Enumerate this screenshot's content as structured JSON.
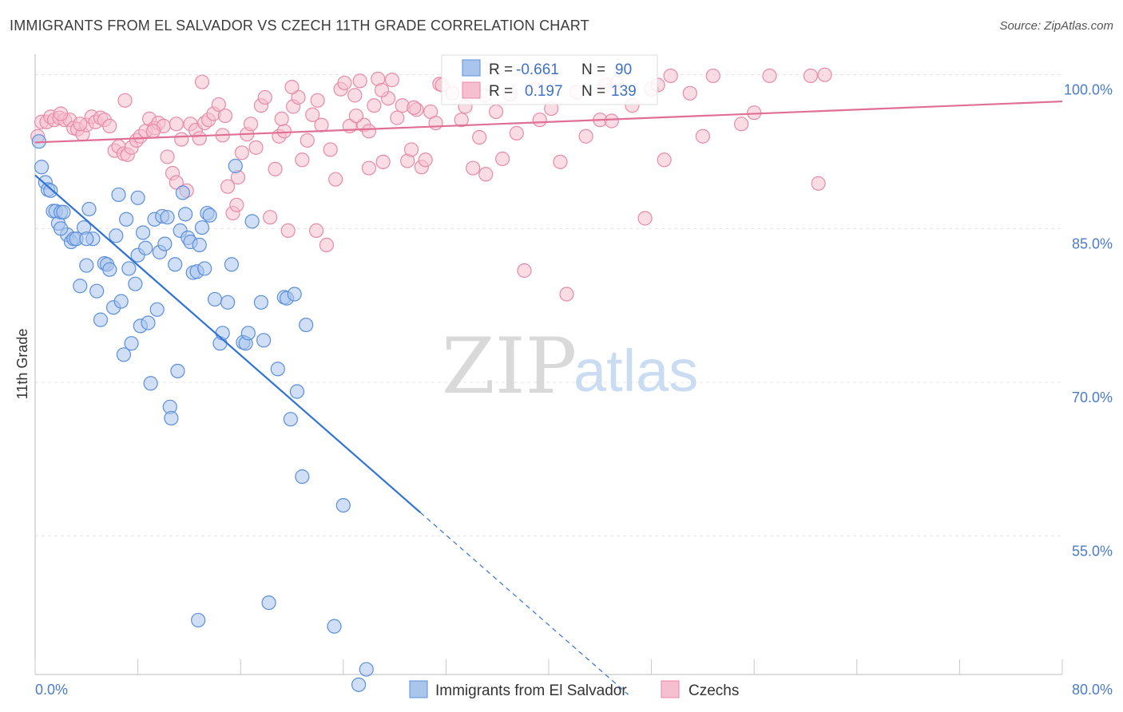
{
  "header": {
    "title": "IMMIGRANTS FROM EL SALVADOR VS CZECH 11TH GRADE CORRELATION CHART",
    "source": "Source: ZipAtlas.com"
  },
  "watermark": {
    "zip": "ZIP",
    "atlas": "atlas"
  },
  "colors": {
    "blue_fill": "#a9c5ec",
    "blue_stroke": "#5b8fdb",
    "blue_line": "#2f72d6",
    "pink_fill": "#f6bfd0",
    "pink_stroke": "#e88aa8",
    "pink_line": "#e06f95",
    "tick_text": "#4a7cc9",
    "grid": "#e4e4e4"
  },
  "legend_box": {
    "rows": [
      {
        "r_label": "R =",
        "r_value": "-0.661",
        "n_label": "N =",
        "n_value": "90"
      },
      {
        "r_label": "R =",
        "r_value": "0.197",
        "n_label": "N =",
        "n_value": "139"
      }
    ]
  },
  "chart_data": {
    "type": "scatter",
    "title": "IMMIGRANTS FROM EL SALVADOR VS CZECH 11TH GRADE CORRELATION CHART",
    "xlabel": "",
    "ylabel": "11th Grade",
    "xlim": [
      0,
      80
    ],
    "ylim": [
      41.5,
      102
    ],
    "x_ticks": [
      "0.0%",
      "80.0%"
    ],
    "y_ticks": [
      {
        "value": 100,
        "label": "100.0%"
      },
      {
        "value": 85,
        "label": "85.0%"
      },
      {
        "value": 70,
        "label": "70.0%"
      },
      {
        "value": 55,
        "label": "55.0%"
      }
    ],
    "grid": true,
    "legend_position": "bottom",
    "series": [
      {
        "name": "Immigrants from El Salvador",
        "r": -0.661,
        "n": 90,
        "trend": {
          "x0": 0,
          "y0": 90.2,
          "x1": 30,
          "y1": 57.3,
          "dash_to_x": 46.2
        },
        "points": [
          [
            0.3,
            93.5
          ],
          [
            0.5,
            91.0
          ],
          [
            0.8,
            89.5
          ],
          [
            1.0,
            88.8
          ],
          [
            1.2,
            88.7
          ],
          [
            1.4,
            86.7
          ],
          [
            1.6,
            86.7
          ],
          [
            1.8,
            85.5
          ],
          [
            2.0,
            86.6
          ],
          [
            2.2,
            86.6
          ],
          [
            2.5,
            84.4
          ],
          [
            2.8,
            83.7
          ],
          [
            3.0,
            84.0
          ],
          [
            3.2,
            84.0
          ],
          [
            3.5,
            79.4
          ],
          [
            3.8,
            85.1
          ],
          [
            4.0,
            81.4
          ],
          [
            4.2,
            86.9
          ],
          [
            4.5,
            84.0
          ],
          [
            4.8,
            78.9
          ],
          [
            5.1,
            76.1
          ],
          [
            5.4,
            81.6
          ],
          [
            5.6,
            81.5
          ],
          [
            5.8,
            81.0
          ],
          [
            6.1,
            77.3
          ],
          [
            6.3,
            84.3
          ],
          [
            6.5,
            88.3
          ],
          [
            6.7,
            77.9
          ],
          [
            6.9,
            72.7
          ],
          [
            7.1,
            85.9
          ],
          [
            7.3,
            81.1
          ],
          [
            7.5,
            73.8
          ],
          [
            7.8,
            79.6
          ],
          [
            8.0,
            82.4
          ],
          [
            8.2,
            75.5
          ],
          [
            8.4,
            84.6
          ],
          [
            8.6,
            83.1
          ],
          [
            8.8,
            75.8
          ],
          [
            9.0,
            69.9
          ],
          [
            9.3,
            85.9
          ],
          [
            9.5,
            77.1
          ],
          [
            9.7,
            82.7
          ],
          [
            9.9,
            86.2
          ],
          [
            10.1,
            83.5
          ],
          [
            10.3,
            86.1
          ],
          [
            10.5,
            67.6
          ],
          [
            10.6,
            66.5
          ],
          [
            10.9,
            81.5
          ],
          [
            11.1,
            71.1
          ],
          [
            11.3,
            84.8
          ],
          [
            11.5,
            88.5
          ],
          [
            11.7,
            86.4
          ],
          [
            11.9,
            84.1
          ],
          [
            12.1,
            83.7
          ],
          [
            12.3,
            80.7
          ],
          [
            12.6,
            80.8
          ],
          [
            12.8,
            83.4
          ],
          [
            13.0,
            85.1
          ],
          [
            13.2,
            81.1
          ],
          [
            13.4,
            86.5
          ],
          [
            13.6,
            86.3
          ],
          [
            14.0,
            78.1
          ],
          [
            14.4,
            73.8
          ],
          [
            14.6,
            74.8
          ],
          [
            15.0,
            77.8
          ],
          [
            15.3,
            81.5
          ],
          [
            15.6,
            91.1
          ],
          [
            16.2,
            73.9
          ],
          [
            16.4,
            73.8
          ],
          [
            16.6,
            74.8
          ],
          [
            16.9,
            85.7
          ],
          [
            17.6,
            77.8
          ],
          [
            17.8,
            74.1
          ],
          [
            18.2,
            48.5
          ],
          [
            18.9,
            71.3
          ],
          [
            19.4,
            78.3
          ],
          [
            19.6,
            78.2
          ],
          [
            19.9,
            66.4
          ],
          [
            20.2,
            78.6
          ],
          [
            20.4,
            69.1
          ],
          [
            20.8,
            60.8
          ],
          [
            21.1,
            75.6
          ],
          [
            23.3,
            46.2
          ],
          [
            24.0,
            58.0
          ],
          [
            25.2,
            40.5
          ],
          [
            25.8,
            42.0
          ],
          [
            12.7,
            46.8
          ],
          [
            8.0,
            88.0
          ],
          [
            4.0,
            84.0
          ],
          [
            2.0,
            85.0
          ]
        ]
      },
      {
        "name": "Czechs",
        "r": 0.197,
        "n": 139,
        "trend": {
          "x0": 0,
          "y0": 93.4,
          "x1": 80,
          "y1": 97.4
        },
        "points": [
          [
            0.2,
            94.0
          ],
          [
            0.5,
            95.4
          ],
          [
            0.9,
            95.4
          ],
          [
            1.2,
            95.9
          ],
          [
            1.5,
            95.6
          ],
          [
            1.9,
            95.8
          ],
          [
            2.3,
            95.6
          ],
          [
            2.7,
            95.6
          ],
          [
            3.0,
            94.8
          ],
          [
            3.3,
            94.7
          ],
          [
            3.7,
            94.2
          ],
          [
            4.0,
            95.1
          ],
          [
            4.4,
            95.9
          ],
          [
            4.7,
            95.4
          ],
          [
            5.1,
            95.8
          ],
          [
            5.4,
            95.6
          ],
          [
            5.8,
            95.0
          ],
          [
            6.2,
            92.6
          ],
          [
            6.5,
            93.0
          ],
          [
            6.9,
            92.3
          ],
          [
            7.2,
            92.2
          ],
          [
            7.5,
            92.9
          ],
          [
            7.9,
            93.6
          ],
          [
            8.2,
            94.0
          ],
          [
            8.6,
            94.5
          ],
          [
            8.9,
            95.7
          ],
          [
            9.3,
            94.8
          ],
          [
            9.6,
            95.3
          ],
          [
            10.0,
            95.0
          ],
          [
            10.3,
            92.0
          ],
          [
            10.7,
            90.4
          ],
          [
            11.0,
            89.5
          ],
          [
            11.4,
            93.7
          ],
          [
            11.8,
            88.7
          ],
          [
            12.1,
            95.2
          ],
          [
            12.5,
            94.6
          ],
          [
            12.8,
            93.8
          ],
          [
            13.2,
            95.3
          ],
          [
            13.5,
            95.6
          ],
          [
            13.9,
            96.2
          ],
          [
            14.3,
            97.1
          ],
          [
            14.6,
            94.1
          ],
          [
            15.0,
            89.1
          ],
          [
            15.4,
            86.5
          ],
          [
            15.7,
            87.3
          ],
          [
            16.1,
            92.4
          ],
          [
            16.5,
            94.2
          ],
          [
            16.8,
            95.2
          ],
          [
            17.2,
            92.9
          ],
          [
            17.6,
            97.0
          ],
          [
            17.9,
            97.8
          ],
          [
            18.3,
            86.1
          ],
          [
            18.7,
            90.8
          ],
          [
            19.0,
            94.0
          ],
          [
            19.4,
            94.5
          ],
          [
            19.7,
            84.8
          ],
          [
            20.1,
            96.9
          ],
          [
            20.5,
            97.8
          ],
          [
            20.8,
            91.7
          ],
          [
            21.2,
            93.6
          ],
          [
            21.6,
            96.1
          ],
          [
            21.9,
            84.8
          ],
          [
            22.3,
            95.1
          ],
          [
            22.7,
            83.4
          ],
          [
            23.0,
            92.7
          ],
          [
            23.4,
            89.8
          ],
          [
            23.8,
            98.6
          ],
          [
            24.1,
            99.2
          ],
          [
            24.5,
            95.0
          ],
          [
            24.9,
            98.0
          ],
          [
            25.3,
            99.4
          ],
          [
            25.6,
            95.1
          ],
          [
            26.0,
            90.9
          ],
          [
            26.4,
            97.0
          ],
          [
            26.7,
            99.6
          ],
          [
            27.1,
            91.5
          ],
          [
            27.5,
            97.7
          ],
          [
            27.8,
            99.5
          ],
          [
            28.2,
            95.8
          ],
          [
            28.6,
            97.0
          ],
          [
            29.0,
            91.6
          ],
          [
            29.3,
            92.7
          ],
          [
            29.7,
            96.6
          ],
          [
            30.1,
            91.0
          ],
          [
            30.4,
            91.7
          ],
          [
            30.8,
            96.4
          ],
          [
            31.2,
            95.3
          ],
          [
            31.5,
            99.1
          ],
          [
            32.5,
            98.2
          ],
          [
            33.2,
            95.6
          ],
          [
            33.5,
            96.9
          ],
          [
            34.1,
            90.9
          ],
          [
            34.6,
            93.9
          ],
          [
            35.1,
            90.3
          ],
          [
            35.9,
            96.4
          ],
          [
            36.4,
            91.8
          ],
          [
            37.0,
            98.1
          ],
          [
            37.5,
            94.3
          ],
          [
            38.1,
            80.9
          ],
          [
            38.9,
            98.6
          ],
          [
            39.3,
            95.6
          ],
          [
            40.2,
            96.7
          ],
          [
            40.9,
            91.5
          ],
          [
            41.4,
            78.6
          ],
          [
            42.2,
            98.3
          ],
          [
            42.9,
            94.0
          ],
          [
            44.0,
            95.6
          ],
          [
            44.9,
            95.5
          ],
          [
            45.3,
            99.2
          ],
          [
            46.5,
            97.0
          ],
          [
            47.5,
            86.0
          ],
          [
            48.0,
            98.6
          ],
          [
            48.5,
            99.0
          ],
          [
            49.0,
            91.7
          ],
          [
            49.5,
            99.9
          ],
          [
            51.0,
            98.2
          ],
          [
            52.0,
            94.0
          ],
          [
            52.8,
            99.9
          ],
          [
            55.0,
            95.2
          ],
          [
            56.0,
            96.3
          ],
          [
            57.2,
            99.9
          ],
          [
            60.4,
            99.9
          ],
          [
            61.0,
            89.4
          ],
          [
            61.5,
            100.0
          ],
          [
            31.7,
            99.0
          ],
          [
            22.0,
            97.5
          ],
          [
            26.0,
            94.5
          ],
          [
            11.0,
            95.2
          ],
          [
            7.0,
            97.5
          ],
          [
            3.5,
            95.2
          ],
          [
            13.0,
            99.3
          ],
          [
            9.2,
            94.5
          ],
          [
            15.8,
            90.0
          ],
          [
            35.0,
            98.0
          ],
          [
            27.0,
            98.5
          ],
          [
            40.0,
            99.5
          ],
          [
            44.4,
            99.0
          ],
          [
            29.5,
            96.8
          ],
          [
            20.0,
            98.8
          ],
          [
            25.0,
            96.0
          ],
          [
            14.8,
            96.0
          ],
          [
            19.2,
            95.7
          ],
          [
            2.0,
            96.2
          ]
        ]
      }
    ]
  }
}
